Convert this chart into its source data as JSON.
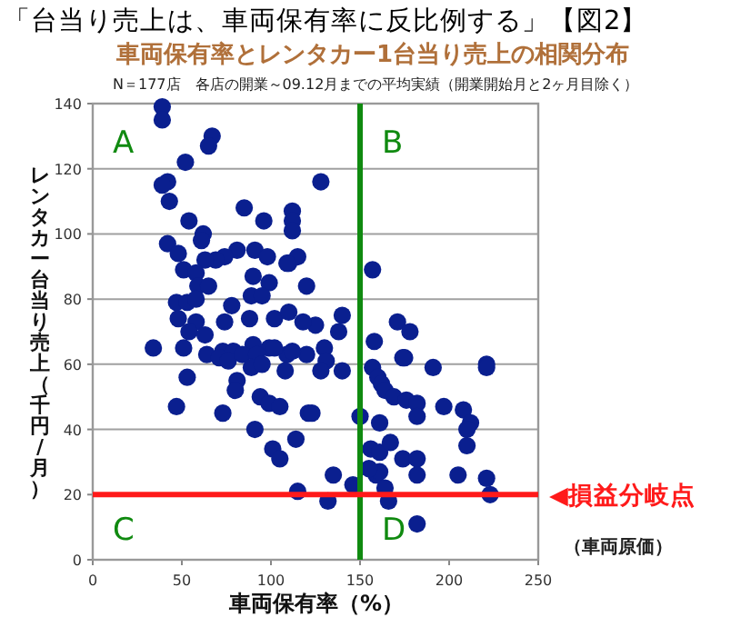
{
  "chart_data": {
    "type": "scatter",
    "title": "「台当り売上は、車両保有率に反比例する」【図2】",
    "subtitle": "車両保有率とレンタカー1台当り売上の相関分布",
    "xlabel": "車両保有率（%）",
    "ylabel": "レンタカー台当り売上（千円/月）",
    "annotations": [
      "N＝177店　各店の開業～09.12月までの平均実績（開業開始月と2ヶ月目除く）",
      "（車両原価）",
      "A",
      "B",
      "C",
      "D"
    ],
    "series": [
      {
        "color": "#0a1f8f",
        "x": [
          39,
          39,
          67,
          65,
          52,
          42,
          39,
          43,
          54,
          62,
          61,
          85,
          96,
          112,
          112,
          112,
          42,
          48,
          81,
          74,
          69,
          63,
          91,
          98,
          110,
          51,
          58,
          90,
          99,
          59,
          65,
          120,
          47,
          53,
          58,
          78,
          89,
          95,
          48,
          58,
          74,
          88,
          102,
          110,
          34,
          51,
          54,
          63,
          64,
          73,
          79,
          90,
          99,
          109,
          120,
          71,
          76,
          84,
          92,
          102,
          112,
          89,
          95,
          108,
          53,
          81,
          80,
          47,
          73,
          94,
          99,
          105,
          91,
          101,
          105,
          114,
          121,
          115,
          128,
          115,
          109,
          157,
          140,
          171,
          178,
          138,
          158,
          125,
          118,
          130,
          175,
          221,
          131,
          128,
          140,
          157,
          160,
          162,
          164,
          174,
          169,
          176,
          182,
          191,
          221,
          197,
          208,
          212,
          210,
          210,
          182,
          150,
          161,
          123,
          135,
          146,
          156,
          161,
          167,
          174,
          182,
          159,
          161,
          164,
          182,
          205,
          221,
          223,
          132,
          166,
          182,
          155
        ],
        "values": [
          139,
          135,
          130,
          127,
          122,
          116,
          115,
          110,
          104,
          100,
          98,
          108,
          104,
          107,
          104,
          101,
          97,
          94,
          95,
          93,
          92,
          92,
          95,
          93,
          91,
          89,
          88,
          87,
          85,
          84,
          84,
          84,
          79,
          79,
          80,
          78,
          81,
          81,
          74,
          73,
          73,
          74,
          74,
          76,
          65,
          65,
          70,
          69,
          63,
          64,
          64,
          66,
          65,
          63,
          63,
          62,
          61,
          63,
          63,
          65,
          64,
          59,
          60,
          58,
          56,
          55,
          52,
          47,
          45,
          50,
          48,
          47,
          40,
          34,
          31,
          37,
          45,
          21,
          116,
          93,
          91,
          89,
          75,
          73,
          70,
          70,
          67,
          72,
          73,
          65,
          62,
          60,
          61,
          58,
          58,
          59,
          56,
          54,
          52,
          62,
          50,
          49,
          48,
          59,
          59,
          47,
          46,
          42,
          40,
          35,
          44,
          44,
          42,
          45,
          26,
          23,
          34,
          33,
          36,
          31,
          31,
          26,
          27,
          22,
          26,
          26,
          25,
          20,
          18,
          18,
          11,
          28
        ]
      }
    ],
    "xlim": [
      0,
      250
    ],
    "ylim": [
      0,
      140
    ],
    "xticks": [
      0,
      50,
      100,
      150,
      200,
      250
    ],
    "yticks": [
      0,
      20,
      40,
      60,
      80,
      100,
      120,
      140
    ],
    "grid": "y",
    "marker": "circle",
    "ref_lines": [
      {
        "axis": "x",
        "value": 150,
        "color": "#108a10"
      },
      {
        "axis": "y",
        "value": 20,
        "color": "#ff1a1a",
        "label": "◀損益分岐点"
      }
    ]
  }
}
